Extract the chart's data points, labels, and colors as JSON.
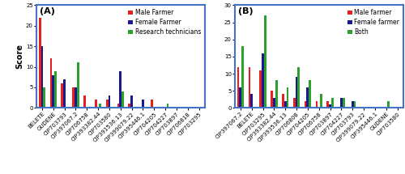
{
  "A": {
    "categories": [
      "BELETE",
      "GUDENE",
      "CIP703793",
      "CIP397067.2",
      "CIP706758",
      "CIP393382.44",
      "CIP703580",
      "CIP391536.13",
      "CIP399079.22",
      "CIP395446.1",
      "CIP704205",
      "CIP704227",
      "CIP703897",
      "CIP706818",
      "CIP703295"
    ],
    "male": [
      22,
      12,
      6,
      5,
      3,
      2,
      2,
      1,
      1,
      0,
      2,
      0,
      0,
      0,
      0
    ],
    "female": [
      15,
      8,
      7,
      5,
      0,
      0,
      3,
      9,
      3,
      2,
      0,
      0,
      0,
      0,
      0
    ],
    "research": [
      5,
      9,
      0,
      11,
      0,
      1,
      0,
      4,
      0,
      0,
      0,
      1,
      0,
      0,
      0
    ],
    "ylabel": "Score",
    "ylim": [
      0,
      25
    ],
    "yticks": [
      0,
      5,
      10,
      15,
      20,
      25
    ],
    "label": "(A)",
    "legend_labels": [
      "Male Farmer",
      "Female Farmer",
      "Research technicians"
    ]
  },
  "B": {
    "categories": [
      "CIP397067.2",
      "BELETE",
      "CIP703295",
      "CIP393382.44",
      "CIP393536.13",
      "CIP706808",
      "CIP704205",
      "CIP706758",
      "CIP703897",
      "CIP704227",
      "CIP703793",
      "CIP399079.22",
      "CIP395446.1",
      "GUDENE",
      "CIP703580"
    ],
    "male": [
      12,
      12,
      11,
      5,
      4,
      3,
      2,
      2,
      2,
      0,
      0,
      0,
      0,
      0,
      0
    ],
    "female": [
      6,
      4,
      16,
      3,
      2,
      9,
      6,
      0,
      1,
      3,
      2,
      0,
      0,
      0,
      0
    ],
    "both": [
      18,
      0,
      27,
      8,
      6,
      12,
      8,
      4,
      3,
      3,
      2,
      0,
      0,
      2,
      0
    ],
    "ylabel": "",
    "ylim": [
      0,
      30
    ],
    "yticks": [
      0,
      5,
      10,
      15,
      20,
      25,
      30
    ],
    "label": "(B)",
    "legend_labels": [
      "Male farmer",
      "Female farmer",
      "Both"
    ]
  },
  "colors": [
    "#e62020",
    "#1a1a8c",
    "#2ca02c"
  ],
  "bar_width": 0.2,
  "panel_label_fontsize": 8,
  "ylabel_fontsize": 7,
  "tick_fontsize": 5.0,
  "legend_fontsize": 5.5,
  "border_color": "#4472c4"
}
